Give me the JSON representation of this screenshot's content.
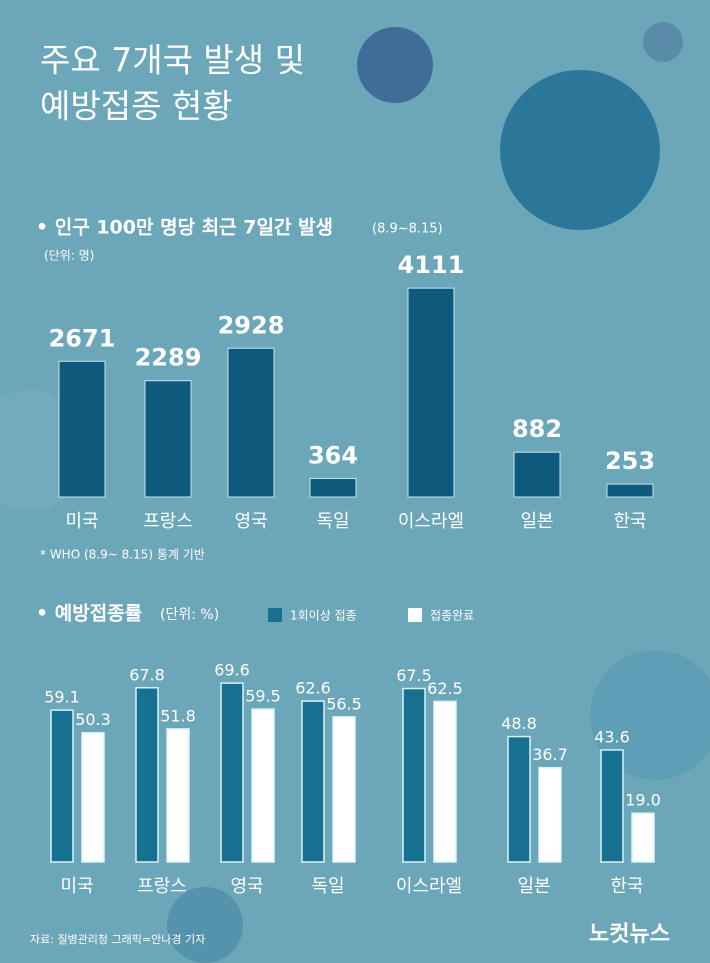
{
  "title_lines": [
    "주요 7개국 발생 및",
    "예방접종 현황"
  ],
  "chart_data": [
    {
      "type": "bar",
      "title": "• 인구 100만 명당 최근 7일간 발생",
      "period": "(8.9~8.15)",
      "unit": "(단위: 명)",
      "categories": [
        "미국",
        "프랑스",
        "영국",
        "독일",
        "이스라엘",
        "일본",
        "한국"
      ],
      "values": [
        2671,
        2289,
        2928,
        364,
        4111,
        882,
        253
      ],
      "color": "#0e5a7c",
      "note": "* WHO (8.9~ 8.15) 통계 기반"
    },
    {
      "type": "grouped-bar",
      "title": "• 예방접종률",
      "unit": "(단위: %)",
      "categories": [
        "미국",
        "프랑스",
        "영국",
        "독일",
        "이스라엘",
        "일본",
        "한국"
      ],
      "series": [
        {
          "name": "1회이상 접종",
          "color": "#15718f",
          "values": [
            59.1,
            67.8,
            69.6,
            62.6,
            67.5,
            48.8,
            43.6
          ]
        },
        {
          "name": "접종완료",
          "color": "#ffffff",
          "values": [
            50.3,
            51.8,
            59.5,
            56.5,
            62.5,
            36.7,
            19
          ],
          "value_labels": [
            "50.3",
            "51.8",
            "59.5",
            "56.5",
            "62.5",
            "36.7",
            "19.0"
          ]
        }
      ],
      "legend": "top"
    }
  ],
  "footer": "자료: 질병관리청 그래픽=안나경 기자",
  "logo": "노컷뉴스"
}
